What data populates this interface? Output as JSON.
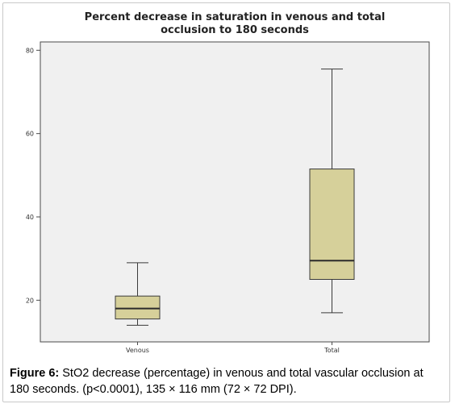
{
  "chart_data": {
    "type": "box",
    "title_lines": [
      "Percent decrease in saturation in venous and total",
      "occlusion to 180 seconds"
    ],
    "xlabel": "",
    "ylabel": "",
    "ylim": [
      10,
      82
    ],
    "yticks": [
      20,
      40,
      60,
      80
    ],
    "ytick_labels": [
      "20",
      "40",
      "60",
      "80"
    ],
    "grid": false,
    "categories": [
      "Venous",
      "Total"
    ],
    "boxes": [
      {
        "category": "Venous",
        "min": 14,
        "q1": 15.5,
        "median": 18,
        "q3": 21,
        "max": 29
      },
      {
        "category": "Total",
        "min": 17,
        "q1": 25,
        "median": 29.5,
        "q3": 51.5,
        "max": 75.5
      }
    ],
    "colors": {
      "plot_background": "#f0f0f0",
      "box_fill": "#d6d09a",
      "box_stroke": "#3a3a3a",
      "median": "#2b2b2b"
    }
  },
  "caption": {
    "label": "Figure 6:",
    "text": " StO2 decrease (percentage) in venous and total vascular occlusion at 180 seconds. (p<0.0001), 135 × 116 mm (72 × 72 DPI)."
  }
}
